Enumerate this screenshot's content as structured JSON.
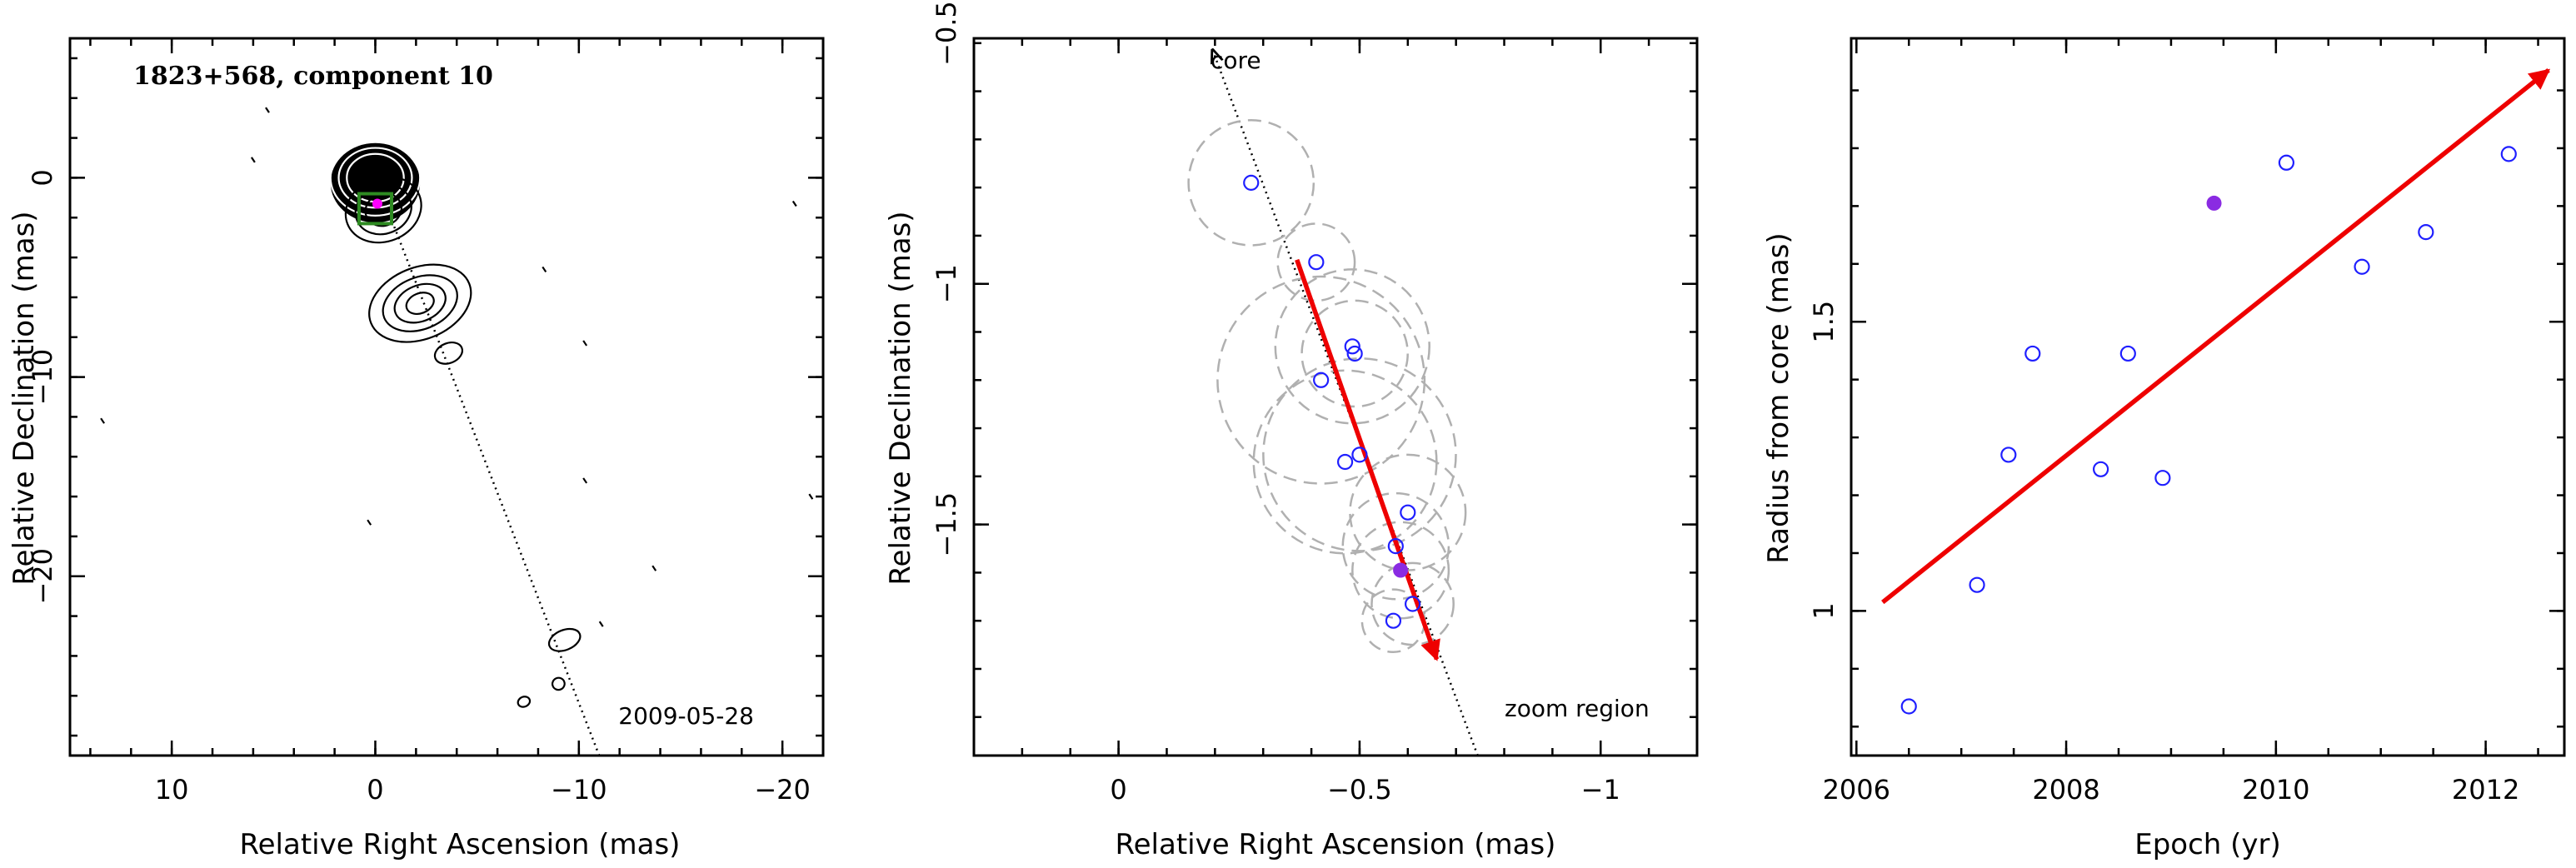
{
  "chart_data": [
    {
      "type": "scatter",
      "panel": "left",
      "title": "1823+568, component 10",
      "date_label": "2009-05-28",
      "xlabel": "Relative Right Ascension (mas)",
      "ylabel": "Relative Declination (mas)",
      "xlim": [
        15,
        -22
      ],
      "ylim": [
        -29,
        7
      ],
      "x_ticks": [
        10,
        0,
        -10,
        -20
      ],
      "y_ticks": [
        0,
        -10,
        -20
      ],
      "jet_axis_line": {
        "x": [
          0,
          -11
        ],
        "y": [
          0,
          -29
        ]
      },
      "contour_knots": [
        {
          "x": 0.0,
          "y": 0.0,
          "rings": [
            [
              2.2,
              1.9
            ],
            [
              1.8,
              1.5
            ],
            [
              1.4,
              1.2
            ],
            [
              1.0,
              0.9
            ],
            [
              0.6,
              0.55
            ],
            [
              0.3,
              0.3
            ]
          ]
        },
        {
          "x": -0.4,
          "y": -1.6,
          "rings": [
            [
              1.9,
              1.6
            ],
            [
              1.4,
              1.2
            ],
            [
              0.9,
              0.8
            ]
          ]
        },
        {
          "x": -2.2,
          "y": -6.3,
          "rings": [
            [
              2.6,
              1.8
            ],
            [
              1.9,
              1.3
            ],
            [
              1.3,
              0.9
            ],
            [
              0.7,
              0.5
            ]
          ]
        },
        {
          "x": -3.6,
          "y": -8.8,
          "rings": [
            [
              0.7,
              0.5
            ]
          ]
        },
        {
          "x": -9.3,
          "y": -23.2,
          "rings": [
            [
              0.8,
              0.5
            ]
          ]
        },
        {
          "x": -9.0,
          "y": -25.4,
          "rings": [
            [
              0.3,
              0.3
            ]
          ]
        },
        {
          "x": -7.3,
          "y": -26.3,
          "rings": [
            [
              0.3,
              0.25
            ]
          ]
        }
      ],
      "noise_specks": [
        {
          "x": 5.3,
          "y": 3.4
        },
        {
          "x": 6.0,
          "y": 0.9
        },
        {
          "x": -8.3,
          "y": -4.6
        },
        {
          "x": -10.3,
          "y": -8.3
        },
        {
          "x": -10.3,
          "y": -15.2
        },
        {
          "x": 0.3,
          "y": -17.3
        },
        {
          "x": -11.1,
          "y": -22.4
        },
        {
          "x": -13.7,
          "y": -19.6
        },
        {
          "x": -20.6,
          "y": -1.3
        },
        {
          "x": 13.4,
          "y": -12.2
        },
        {
          "x": -21.4,
          "y": -16.0
        }
      ],
      "zoom_region": {
        "x": [
          0.8,
          -0.8
        ],
        "y": [
          -0.8,
          -2.3
        ],
        "color": "#2e8b22"
      },
      "zoom_marker": {
        "x": -0.1,
        "y": -1.3,
        "color": "#ff00ff"
      }
    },
    {
      "type": "scatter",
      "panel": "middle",
      "xlabel": "Relative Right Ascension (mas)",
      "ylabel": "Relative Declination (mas)",
      "xlim": [
        0.3,
        -1.2
      ],
      "ylim": [
        -1.98,
        -0.49
      ],
      "x_ticks": [
        0,
        -0.5,
        -1
      ],
      "y_ticks": [
        -1,
        -1.5
      ],
      "top_partial_tick_label": "-0.5",
      "core_label": "core",
      "zoom_region_label": "zoom region",
      "jet_axis_line": {
        "x": [
          -0.195,
          -0.745
        ],
        "y": [
          -0.49,
          -1.98
        ]
      },
      "core_arrow_tip": {
        "x": -0.195,
        "y": -0.49
      },
      "points": [
        {
          "x": -0.275,
          "y": -0.79,
          "r": 0.13
        },
        {
          "x": -0.41,
          "y": -0.955,
          "r": 0.08
        },
        {
          "x": -0.485,
          "y": -1.13,
          "r": 0.16
        },
        {
          "x": -0.49,
          "y": -1.145,
          "r": 0.11
        },
        {
          "x": -0.42,
          "y": -1.2,
          "r": 0.215
        },
        {
          "x": -0.5,
          "y": -1.355,
          "r": 0.2
        },
        {
          "x": -0.47,
          "y": -1.37,
          "r": 0.19
        },
        {
          "x": -0.6,
          "y": -1.475,
          "r": 0.12
        },
        {
          "x": -0.575,
          "y": -1.545,
          "r": 0.11
        },
        {
          "x": -0.61,
          "y": -1.665,
          "r": 0.085
        },
        {
          "x": -0.57,
          "y": -1.7,
          "r": 0.065
        }
      ],
      "highlight_point": {
        "x": -0.585,
        "y": -1.595,
        "r": 0.1,
        "color": "#8a2be2"
      },
      "point_color": "#1f1fff",
      "circle_color": "#b0b0b0",
      "trend_arrow": {
        "x": [
          -0.37,
          -0.66
        ],
        "y": [
          -0.95,
          -1.78
        ],
        "color": "#ee0000"
      }
    },
    {
      "type": "scatter",
      "panel": "right",
      "xlabel": "Epoch (yr)",
      "ylabel": "Radius from core (mas)",
      "xlim": [
        2005.95,
        2012.75
      ],
      "ylim": [
        0.75,
        1.99
      ],
      "x_ticks": [
        2006,
        2008,
        2010,
        2012
      ],
      "y_ticks": [
        1,
        1.5
      ],
      "points": [
        {
          "x": 2006.5,
          "y": 0.835
        },
        {
          "x": 2007.15,
          "y": 1.045
        },
        {
          "x": 2007.45,
          "y": 1.27
        },
        {
          "x": 2007.68,
          "y": 1.445
        },
        {
          "x": 2008.33,
          "y": 1.245
        },
        {
          "x": 2008.59,
          "y": 1.445
        },
        {
          "x": 2008.92,
          "y": 1.23
        },
        {
          "x": 2010.1,
          "y": 1.775
        },
        {
          "x": 2010.82,
          "y": 1.595
        },
        {
          "x": 2011.43,
          "y": 1.655
        },
        {
          "x": 2012.22,
          "y": 1.79
        }
      ],
      "highlight_point": {
        "x": 2009.41,
        "y": 1.705,
        "color": "#8a2be2"
      },
      "point_color": "#1f1fff",
      "trend_arrow": {
        "x": [
          2006.25,
          2012.6
        ],
        "y": [
          1.015,
          1.935
        ],
        "color": "#ee0000"
      }
    }
  ]
}
